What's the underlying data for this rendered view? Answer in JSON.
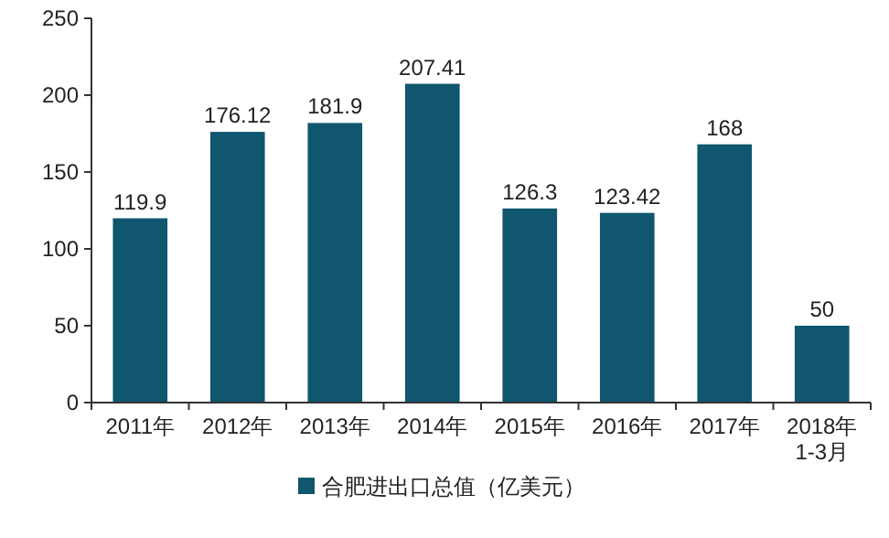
{
  "chart_data": {
    "type": "bar",
    "categories": [
      "2011年",
      "2012年",
      "2013年",
      "2014年",
      "2015年",
      "2016年",
      "2017年",
      "2018年\n1-3月"
    ],
    "series": [
      {
        "name": "合肥进出口总值（亿美元）",
        "color": "#0f566e",
        "values": [
          119.9,
          176.12,
          181.9,
          207.41,
          126.3,
          123.42,
          168,
          50
        ]
      }
    ],
    "ylim": [
      0,
      250
    ],
    "yticks": [
      0,
      50,
      100,
      150,
      200,
      250
    ],
    "data_labels": true,
    "legend": "bottom",
    "grid": false
  }
}
